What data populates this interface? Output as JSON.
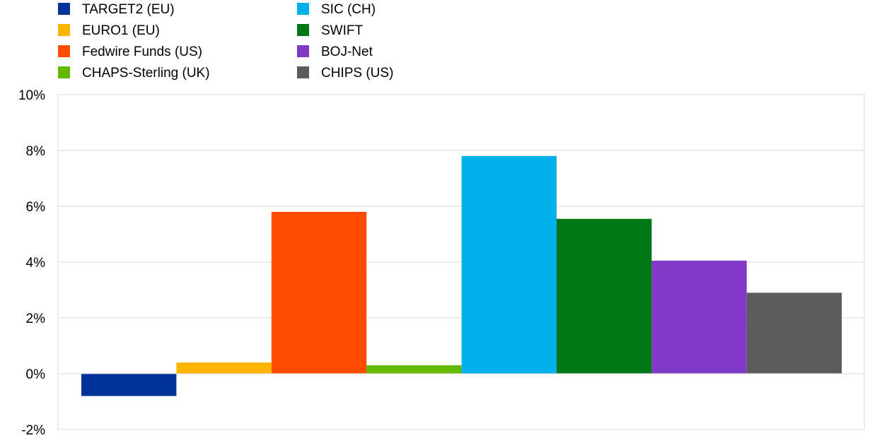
{
  "chart_data": {
    "type": "bar",
    "title": "",
    "xlabel": "",
    "ylabel": "",
    "ylim": [
      -2,
      10
    ],
    "yticks": [
      -2,
      0,
      2,
      4,
      6,
      8,
      10
    ],
    "ytick_labels": [
      "-2%",
      "0%",
      "2%",
      "4%",
      "6%",
      "8%",
      "10%"
    ],
    "y_unit": "%",
    "grid": true,
    "legend_position": "top-left",
    "series": [
      {
        "name": "TARGET2 (EU)",
        "value": -0.8,
        "color": "#003399"
      },
      {
        "name": "EURO1 (EU)",
        "value": 0.4,
        "color": "#FFB400"
      },
      {
        "name": "Fedwire Funds (US)",
        "value": 5.8,
        "color": "#FF4B00"
      },
      {
        "name": "CHAPS-Sterling (UK)",
        "value": 0.3,
        "color": "#65B800"
      },
      {
        "name": "SIC (CH)",
        "value": 7.8,
        "color": "#00B1EA"
      },
      {
        "name": "SWIFT",
        "value": 5.55,
        "color": "#007816"
      },
      {
        "name": "BOJ-Net",
        "value": 4.05,
        "color": "#8139C6"
      },
      {
        "name": "CHIPS (US)",
        "value": 2.9,
        "color": "#5C5C5C"
      }
    ]
  }
}
